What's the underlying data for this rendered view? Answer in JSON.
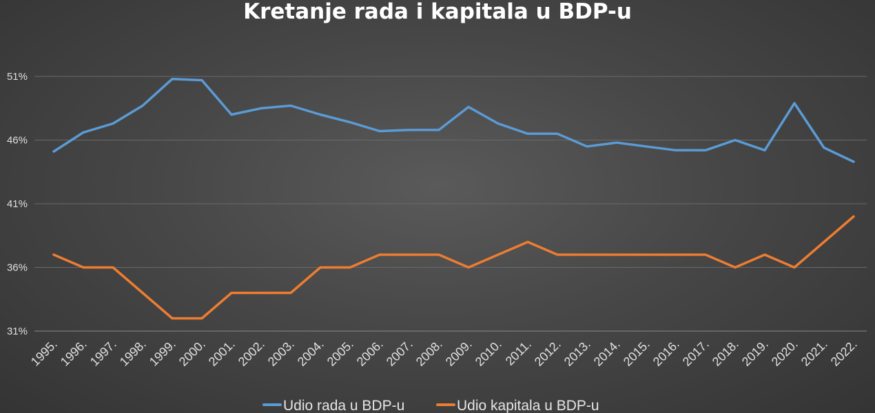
{
  "chart_data": {
    "type": "line",
    "title": "Kretanje rada i kapitala u BDP-u",
    "xlabel": "",
    "ylabel": "",
    "ylim": [
      31,
      51
    ],
    "yticks": [
      "31%",
      "36%",
      "41%",
      "46%",
      "51%"
    ],
    "ytick_values": [
      31,
      36,
      41,
      46,
      51
    ],
    "grid": true,
    "legend_position": "bottom",
    "categories": [
      "1995.",
      "1996.",
      "1997.",
      "1998.",
      "1999.",
      "2000.",
      "2001.",
      "2002.",
      "2003.",
      "2004.",
      "2005.",
      "2006.",
      "2007.",
      "2008.",
      "2009.",
      "2010.",
      "2011.",
      "2012.",
      "2013.",
      "2014.",
      "2015.",
      "2016.",
      "2017.",
      "2018.",
      "2019.",
      "2020.",
      "2021.",
      "2022."
    ],
    "series": [
      {
        "name": "Udio rada u BDP-u",
        "color": "#5b9bd5",
        "values": [
          45.1,
          46.6,
          47.3,
          48.7,
          50.8,
          50.7,
          48.0,
          48.5,
          48.7,
          48.0,
          47.4,
          46.7,
          46.8,
          46.8,
          48.6,
          47.3,
          46.5,
          46.5,
          45.5,
          45.8,
          45.5,
          45.2,
          45.2,
          46.0,
          45.2,
          48.9,
          45.4,
          44.3
        ]
      },
      {
        "name": "Udio kapitala u BDP-u",
        "color": "#ed7d31",
        "values": [
          37.0,
          36.0,
          36.0,
          34.0,
          32.0,
          32.0,
          34.0,
          34.0,
          34.0,
          36.0,
          36.0,
          37.0,
          37.0,
          37.0,
          36.0,
          37.0,
          38.0,
          37.0,
          37.0,
          37.0,
          37.0,
          37.0,
          37.0,
          36.0,
          37.0,
          36.0,
          38.0,
          40.0
        ]
      }
    ]
  }
}
